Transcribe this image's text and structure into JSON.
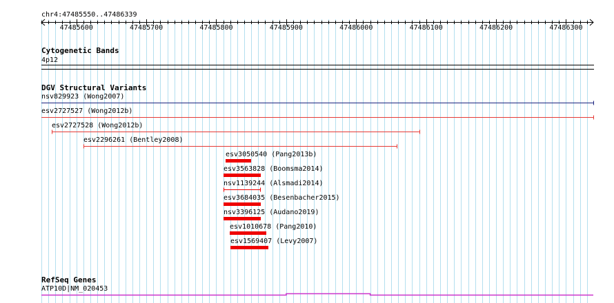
{
  "ruler": {
    "coordinate_label": "chr4:47485550..47486339",
    "ticks": [
      "47485600",
      "47485700",
      "47485800",
      "47485900",
      "47486000",
      "47486100",
      "47486200",
      "47486300"
    ]
  },
  "tracks": {
    "cytoband": {
      "title": "Cytogenetic Bands",
      "band": "4p12"
    },
    "dgv": {
      "title": "DGV Structural Variants",
      "features": [
        {
          "label": "nsv829923 (Wong2007)",
          "color": "#1a237e",
          "start": 47485550,
          "end": 47486339,
          "style": "line"
        },
        {
          "label": "esv2727527 (Wong2012b)",
          "color": "#e53935",
          "start": 47485550,
          "end": 47486339,
          "style": "line"
        },
        {
          "label": "esv2727528 (Wong2012b)",
          "color": "#e53935",
          "start": 47485565,
          "end": 47486090,
          "style": "capped"
        },
        {
          "label": "esv2296261 (Bentley2008)",
          "color": "#e53935",
          "start": 47485610,
          "end": 47486058,
          "style": "capped"
        },
        {
          "label": "esv3050540 (Pang2013b)",
          "color": "#ee0000",
          "start": 47485813,
          "end": 47485850,
          "style": "bar"
        },
        {
          "label": "esv3563828 (Boomsma2014)",
          "color": "#ee0000",
          "start": 47485810,
          "end": 47485864,
          "style": "bar"
        },
        {
          "label": "nsv1139244 (Alsmadi2014)",
          "color": "#ee0000",
          "start": 47485810,
          "end": 47485863,
          "style": "capped"
        },
        {
          "label": "esv3684035 (Besenbacher2015)",
          "color": "#ee0000",
          "start": 47485810,
          "end": 47485864,
          "style": "bar"
        },
        {
          "label": "nsv3396125 (Audano2019)",
          "color": "#ee0000",
          "start": 47485810,
          "end": 47485864,
          "style": "bar"
        },
        {
          "label": "esv1010678 (Pang2010)",
          "color": "#ee0000",
          "start": 47485819,
          "end": 47485872,
          "style": "bar"
        },
        {
          "label": "esv1569407 (Levy2007)",
          "color": "#ee0000",
          "start": 47485820,
          "end": 47485874,
          "style": "bar"
        }
      ]
    },
    "refseq": {
      "title": "RefSeq Genes",
      "gene": "ATP10D|NM_020453",
      "color": "#cc33cc"
    }
  },
  "colors": {
    "grid": "#b3dfef",
    "track_line": "#000000"
  }
}
